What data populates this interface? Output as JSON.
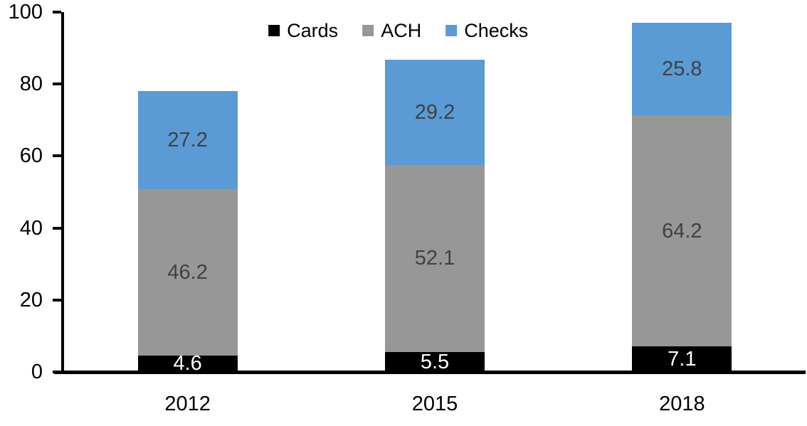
{
  "chart_data": {
    "type": "bar",
    "stacked": true,
    "title": "",
    "xlabel": "",
    "ylabel": "",
    "categories": [
      "2012",
      "2015",
      "2018"
    ],
    "series": [
      {
        "name": "Cards",
        "values": [
          4.6,
          5.5,
          7.1
        ],
        "color": "#000000",
        "label_color": "#ffffff"
      },
      {
        "name": "ACH",
        "values": [
          46.2,
          52.1,
          64.2
        ],
        "color": "#979797",
        "label_color": "#404040"
      },
      {
        "name": "Checks",
        "values": [
          27.2,
          29.2,
          25.8
        ],
        "color": "#5b9bd5",
        "label_color": "#404040"
      }
    ],
    "data_labels": "shown, one decimal place",
    "ylim": [
      0,
      100
    ],
    "yticks": [
      0,
      20,
      40,
      60,
      80,
      100
    ],
    "legend_position": "top-center",
    "legend_order": [
      "Cards",
      "ACH",
      "Checks"
    ],
    "grid": "off",
    "axis_color": "#000000",
    "tick_label_color": "#000000",
    "background_color": "#ffffff"
  }
}
